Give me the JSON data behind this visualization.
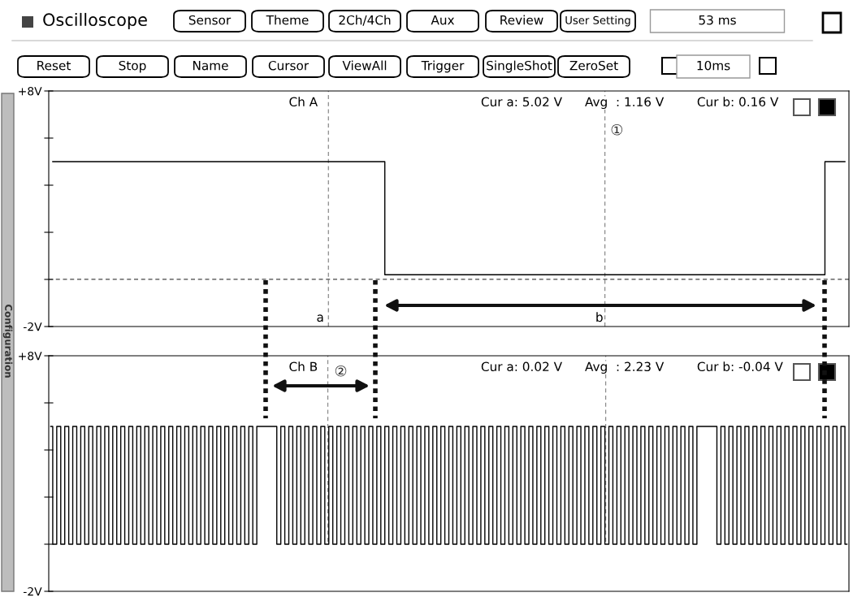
{
  "chart_data": [
    {
      "type": "other",
      "annotations": [
        "Oscilloscope",
        "Sensor",
        "Theme",
        "2Ch/4Ch",
        "Aux",
        "Review",
        "User Setting",
        "53 ms",
        "Reset",
        "Stop",
        "Name",
        "Cursor",
        "ViewAll",
        "Trigger",
        "SingleShot",
        "ZeroSet",
        "10ms",
        "Configuration"
      ]
    },
    {
      "type": "step",
      "categories": [
        null,
        null,
        null,
        null,
        null,
        null,
        null,
        null,
        null,
        null,
        null,
        null,
        null,
        null,
        null,
        null,
        null,
        null,
        null,
        null,
        null,
        null,
        null,
        null,
        null,
        null,
        null,
        null,
        null,
        null,
        null,
        null,
        null,
        null,
        null,
        null,
        null,
        null,
        null,
        null,
        null,
        null,
        null,
        null,
        null,
        null,
        null,
        null,
        null,
        null,
        null,
        null,
        null,
        null,
        null,
        null,
        null,
        null,
        null,
        null,
        null,
        null,
        null,
        null,
        null,
        null,
        null,
        null,
        null,
        null,
        null,
        null,
        null,
        null,
        null,
        null,
        null,
        null,
        null,
        null,
        null,
        null,
        null,
        null,
        null,
        null,
        null,
        null,
        null,
        null,
        null,
        null,
        null,
        null,
        null,
        null,
        null,
        null,
        null,
        null
      ],
      "series": [
        {
          "name": "Ch A",
          "color": "#000000",
          "values": [
            5,
            5,
            5,
            5,
            5,
            5,
            5,
            5,
            5,
            5,
            5,
            5,
            5,
            5,
            5,
            5,
            5,
            5,
            5,
            5,
            5,
            5,
            5,
            5,
            5,
            5,
            5,
            5,
            5,
            5,
            5,
            5,
            5,
            5,
            5,
            5,
            5,
            5,
            5,
            5,
            5,
            5,
            0.2,
            0.2,
            0.2,
            0.2,
            0.2,
            0.2,
            0.2,
            0.2,
            0.2,
            0.2,
            0.2,
            0.2,
            0.2,
            0.2,
            0.2,
            0.2,
            0.2,
            0.2,
            0.2,
            0.2,
            0.2,
            0.2,
            0.2,
            0.2,
            0.2,
            0.2,
            0.2,
            0.2,
            0.2,
            0.2,
            0.2,
            0.2,
            0.2,
            0.2,
            0.2,
            0.2,
            0.2,
            0.2,
            0.2,
            0.2,
            0.2,
            0.2,
            0.2,
            0.2,
            0.2,
            0.2,
            0.2,
            0.2,
            0.2,
            0.2,
            0.2,
            0.2,
            0.2,
            0.2,
            0.2,
            5,
            5,
            5
          ]
        }
      ],
      "ylim": [
        -2,
        8
      ],
      "yticks": [
        {
          "value": -2,
          "label": "-2V"
        },
        {
          "value": 0,
          "label": null
        },
        {
          "value": 2,
          "label": null
        },
        {
          "value": 4,
          "label": null
        },
        {
          "value": 6,
          "label": null
        },
        {
          "value": 8,
          "label": "+8V"
        }
      ],
      "ref_lines": [
        {
          "axis": "y",
          "value": 0,
          "label": null,
          "line_style": "dashed",
          "color": "#444444"
        }
      ],
      "annotations": [
        "Cur a: 5.02 V",
        "Avg  : 1.16 V",
        "Cur b: 0.16 V",
        "①",
        "a",
        "b"
      ]
    },
    {
      "type": "step",
      "categories": [
        null,
        null,
        null,
        null,
        null,
        null,
        null,
        null,
        null,
        null,
        null,
        null,
        null,
        null,
        null,
        null,
        null,
        null,
        null,
        null,
        null,
        null,
        null,
        null,
        null,
        null,
        null,
        null,
        null,
        null,
        null,
        null,
        null,
        null,
        null,
        null,
        null,
        null,
        null,
        null,
        null,
        null,
        null,
        null,
        null,
        null,
        null,
        null,
        null,
        null,
        null,
        null,
        null,
        null,
        null,
        null,
        null,
        null,
        null,
        null,
        null,
        null,
        null,
        null,
        null,
        null,
        null,
        null,
        null,
        null,
        null,
        null,
        null,
        null,
        null,
        null,
        null,
        null,
        null,
        null,
        null,
        null,
        null,
        null,
        null,
        null,
        null,
        null,
        null,
        null,
        null,
        null,
        null,
        null,
        null,
        null,
        null,
        null,
        null,
        null,
        null,
        null,
        null,
        null,
        null,
        null,
        null,
        null,
        null,
        null,
        null,
        null,
        null,
        null,
        null,
        null,
        null,
        null,
        null,
        null,
        null,
        null,
        null,
        null,
        null,
        null,
        null,
        null,
        null,
        null,
        null,
        null,
        null,
        null,
        null,
        null,
        null,
        null,
        null,
        null,
        null,
        null,
        null,
        null,
        null,
        null,
        null,
        null,
        null,
        null,
        null,
        null,
        null,
        null,
        null,
        null,
        null,
        null,
        null,
        null,
        null,
        null,
        null,
        null,
        null,
        null,
        null,
        null,
        null,
        null,
        null,
        null,
        null,
        null,
        null,
        null,
        null,
        null,
        null,
        null,
        null,
        null,
        null,
        null,
        null,
        null,
        null,
        null,
        null,
        null,
        null,
        null,
        null,
        null,
        null,
        null,
        null,
        null,
        null,
        null
      ],
      "series": [
        {
          "name": "Ch B",
          "color": "#000000",
          "values": [
            5,
            0,
            5,
            0,
            5,
            0,
            5,
            0,
            5,
            0,
            5,
            0,
            5,
            0,
            5,
            0,
            5,
            0,
            5,
            0,
            5,
            0,
            5,
            0,
            5,
            0,
            5,
            0,
            5,
            0,
            5,
            0,
            5,
            0,
            5,
            0,
            5,
            0,
            5,
            0,
            5,
            0,
            5,
            0,
            5,
            0,
            5,
            0,
            5,
            0,
            5,
            0,
            5,
            5,
            5,
            5,
            5,
            0,
            5,
            0,
            5,
            0,
            5,
            0,
            5,
            0,
            5,
            0,
            5,
            0,
            5,
            0,
            5,
            0,
            5,
            0,
            5,
            0,
            5,
            0,
            5,
            0,
            5,
            0,
            5,
            0,
            5,
            0,
            5,
            0,
            5,
            0,
            5,
            0,
            5,
            0,
            5,
            0,
            5,
            0,
            5,
            0,
            5,
            0,
            5,
            0,
            5,
            0,
            5,
            0,
            5,
            0,
            5,
            0,
            5,
            0,
            5,
            0,
            5,
            0,
            5,
            0,
            5,
            0,
            5,
            0,
            5,
            0,
            5,
            0,
            5,
            0,
            5,
            0,
            5,
            0,
            5,
            0,
            5,
            0,
            5,
            0,
            5,
            0,
            5,
            0,
            5,
            0,
            5,
            0,
            5,
            0,
            5,
            0,
            5,
            0,
            5,
            0,
            5,
            0,
            5,
            0,
            5,
            5,
            5,
            5,
            5,
            0,
            5,
            0,
            5,
            0,
            5,
            0,
            5,
            0,
            5,
            0,
            5,
            0,
            5,
            0,
            5,
            0,
            5,
            0,
            5,
            0,
            5,
            0,
            5,
            0,
            5,
            0,
            5,
            0,
            5,
            0,
            5,
            0
          ]
        }
      ],
      "ylim": [
        -2,
        8
      ],
      "yticks": [
        {
          "value": -2,
          "label": "-2V"
        },
        {
          "value": 0,
          "label": null
        },
        {
          "value": 2,
          "label": null
        },
        {
          "value": 4,
          "label": null
        },
        {
          "value": 6,
          "label": null
        },
        {
          "value": 8,
          "label": "+8V"
        }
      ],
      "annotations": [
        "Cur a: 0.02 V",
        "Avg  : 2.23 V",
        "Cur b: -0.04 V",
        "②"
      ]
    }
  ]
}
